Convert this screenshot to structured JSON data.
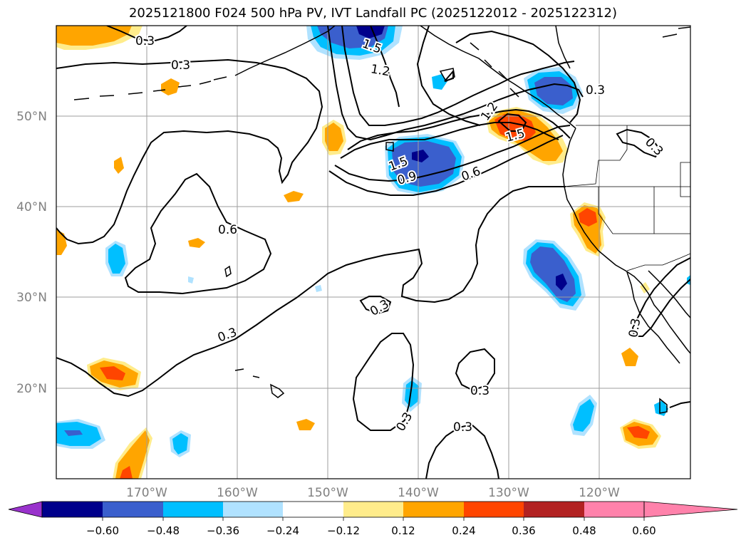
{
  "title": "2025121800 F024 500 hPa PV, IVT Landfall PC (2025122012 - 2025122312)",
  "map": {
    "lat_labels": [
      "50°N",
      "40°N",
      "30°N",
      "20°N"
    ],
    "lon_labels": [
      "170°W",
      "160°W",
      "150°W",
      "140°W",
      "130°W",
      "120°W"
    ],
    "gridline_color": "#9e9e9e",
    "tick_label_color": "#808080"
  },
  "contour_labels": [
    "0.3",
    "0.3",
    "1.5",
    "1.2",
    "1.2",
    "0.3",
    "1.5",
    "1.5",
    "0.9",
    "0.6",
    "0.6",
    "0.3",
    "0.3",
    "0.3",
    "0.3",
    "0.3",
    "0.3",
    "0.3"
  ],
  "colorbar": {
    "ticks": [
      "−0.60",
      "−0.48",
      "−0.36",
      "−0.24",
      "−0.12",
      "0.12",
      "0.24",
      "0.36",
      "0.48",
      "0.60"
    ],
    "colors": [
      "#9932cc",
      "#00008b",
      "#3a5fcd",
      "#00bfff",
      "#b0e2ff",
      "#ffffff",
      "#ffec8b",
      "#ffa500",
      "#ff4500",
      "#b22222",
      "#ff82ab"
    ]
  }
}
